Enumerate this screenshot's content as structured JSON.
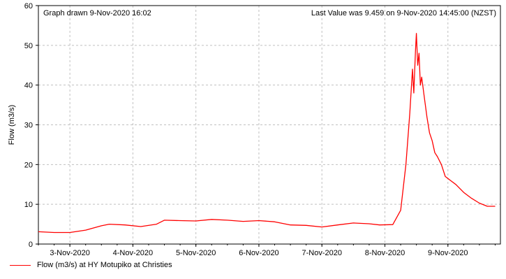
{
  "header": {
    "graph_drawn": "Graph drawn  9-Nov-2020 16:02",
    "last_value": "Last Value was 9.459 on  9-Nov-2020 14:45:00 (NZST)"
  },
  "legend": {
    "label": "Flow (m3/s) at HY Motupiko at Christies"
  },
  "colors": {
    "series": "#ff0000",
    "grid": "#c0c0c0",
    "axis": "#000000"
  },
  "chart_data": {
    "type": "line",
    "title": "",
    "ylabel": "Flow (m3/s)",
    "xlabel": "",
    "ylim": [
      0,
      60
    ],
    "yticks": [
      0,
      10,
      20,
      30,
      40,
      50,
      60
    ],
    "xlim": [
      "2020-11-02T12:00",
      "2020-11-09T20:00"
    ],
    "xticks": [
      {
        "value": "2020-11-03T00:00",
        "label": "3-Nov-2020"
      },
      {
        "value": "2020-11-04T00:00",
        "label": "4-Nov-2020"
      },
      {
        "value": "2020-11-05T00:00",
        "label": "5-Nov-2020"
      },
      {
        "value": "2020-11-06T00:00",
        "label": "6-Nov-2020"
      },
      {
        "value": "2020-11-07T00:00",
        "label": "7-Nov-2020"
      },
      {
        "value": "2020-11-08T00:00",
        "label": "8-Nov-2020"
      },
      {
        "value": "2020-11-09T00:00",
        "label": "9-Nov-2020"
      }
    ],
    "grid": true,
    "legend_position": "bottom-left",
    "series": [
      {
        "name": "Flow (m3/s) at HY Motupiko at Christies",
        "color": "#ff0000",
        "points": [
          [
            "2020-11-02T12:00",
            3.1
          ],
          [
            "2020-11-02T18:00",
            2.9
          ],
          [
            "2020-11-03T00:00",
            2.9
          ],
          [
            "2020-11-03T06:00",
            3.5
          ],
          [
            "2020-11-03T12:00",
            4.6
          ],
          [
            "2020-11-03T15:00",
            5.0
          ],
          [
            "2020-11-03T21:00",
            4.8
          ],
          [
            "2020-11-04T03:00",
            4.4
          ],
          [
            "2020-11-04T09:00",
            5.0
          ],
          [
            "2020-11-04T12:00",
            6.0
          ],
          [
            "2020-11-04T18:00",
            5.9
          ],
          [
            "2020-11-05T00:00",
            5.8
          ],
          [
            "2020-11-05T06:00",
            6.2
          ],
          [
            "2020-11-05T12:00",
            6.0
          ],
          [
            "2020-11-05T18:00",
            5.7
          ],
          [
            "2020-11-06T00:00",
            5.9
          ],
          [
            "2020-11-06T06:00",
            5.6
          ],
          [
            "2020-11-06T12:00",
            4.8
          ],
          [
            "2020-11-06T18:00",
            4.7
          ],
          [
            "2020-11-07T00:00",
            4.3
          ],
          [
            "2020-11-07T06:00",
            4.8
          ],
          [
            "2020-11-07T12:00",
            5.3
          ],
          [
            "2020-11-07T18:00",
            5.1
          ],
          [
            "2020-11-07T22:00",
            4.8
          ],
          [
            "2020-11-08T03:00",
            4.9
          ],
          [
            "2020-11-08T06:00",
            8.5
          ],
          [
            "2020-11-08T08:00",
            20.0
          ],
          [
            "2020-11-08T09:30",
            33.0
          ],
          [
            "2020-11-08T10:30",
            44.0
          ],
          [
            "2020-11-08T11:00",
            38.0
          ],
          [
            "2020-11-08T11:40",
            49.0
          ],
          [
            "2020-11-08T12:00",
            53.0
          ],
          [
            "2020-11-08T12:30",
            45.0
          ],
          [
            "2020-11-08T13:00",
            48.0
          ],
          [
            "2020-11-08T13:30",
            40.0
          ],
          [
            "2020-11-08T14:00",
            42.0
          ],
          [
            "2020-11-08T15:00",
            37.0
          ],
          [
            "2020-11-08T16:00",
            32.0
          ],
          [
            "2020-11-08T17:00",
            28.0
          ],
          [
            "2020-11-08T18:00",
            26.0
          ],
          [
            "2020-11-08T19:00",
            23.0
          ],
          [
            "2020-11-08T20:00",
            22.0
          ],
          [
            "2020-11-08T21:30",
            20.0
          ],
          [
            "2020-11-08T23:00",
            17.0
          ],
          [
            "2020-11-09T01:00",
            16.0
          ],
          [
            "2020-11-09T03:00",
            15.0
          ],
          [
            "2020-11-09T06:00",
            13.0
          ],
          [
            "2020-11-09T09:00",
            11.5
          ],
          [
            "2020-11-09T12:00",
            10.3
          ],
          [
            "2020-11-09T15:00",
            9.5
          ],
          [
            "2020-11-09T18:00",
            9.5
          ]
        ]
      }
    ]
  }
}
